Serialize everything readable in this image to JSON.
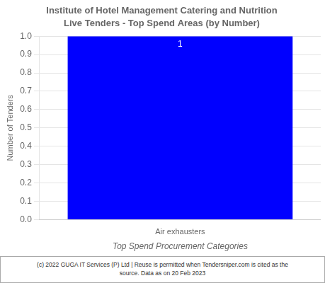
{
  "chart_data": {
    "type": "bar",
    "title": "Institute of Hotel Management Catering and Nutrition",
    "subtitle": "Live Tenders - Top Spend Areas (by Number)",
    "categories": [
      "Air exhausters"
    ],
    "values": [
      1
    ],
    "color": "#0000ff",
    "ylabel": "Number of Tenders",
    "xlabel": "Top Spend Procurement Categories",
    "ylim": [
      0.0,
      1.0
    ],
    "yticks": [
      {
        "value": 0.0,
        "label": "0.0"
      },
      0.1,
      0.2,
      0.3,
      0.4,
      0.5,
      0.6,
      0.7,
      0.8,
      0.9,
      {
        "value": 1.0,
        "label": "1.0"
      }
    ],
    "grid": true,
    "data_labels": true,
    "footer": "(c) 2022 GUGA IT Services (P) Ltd | Reuse is permitted when Tendersniper.com is cited as the\nsource. Data as on 20 Feb 2023"
  }
}
